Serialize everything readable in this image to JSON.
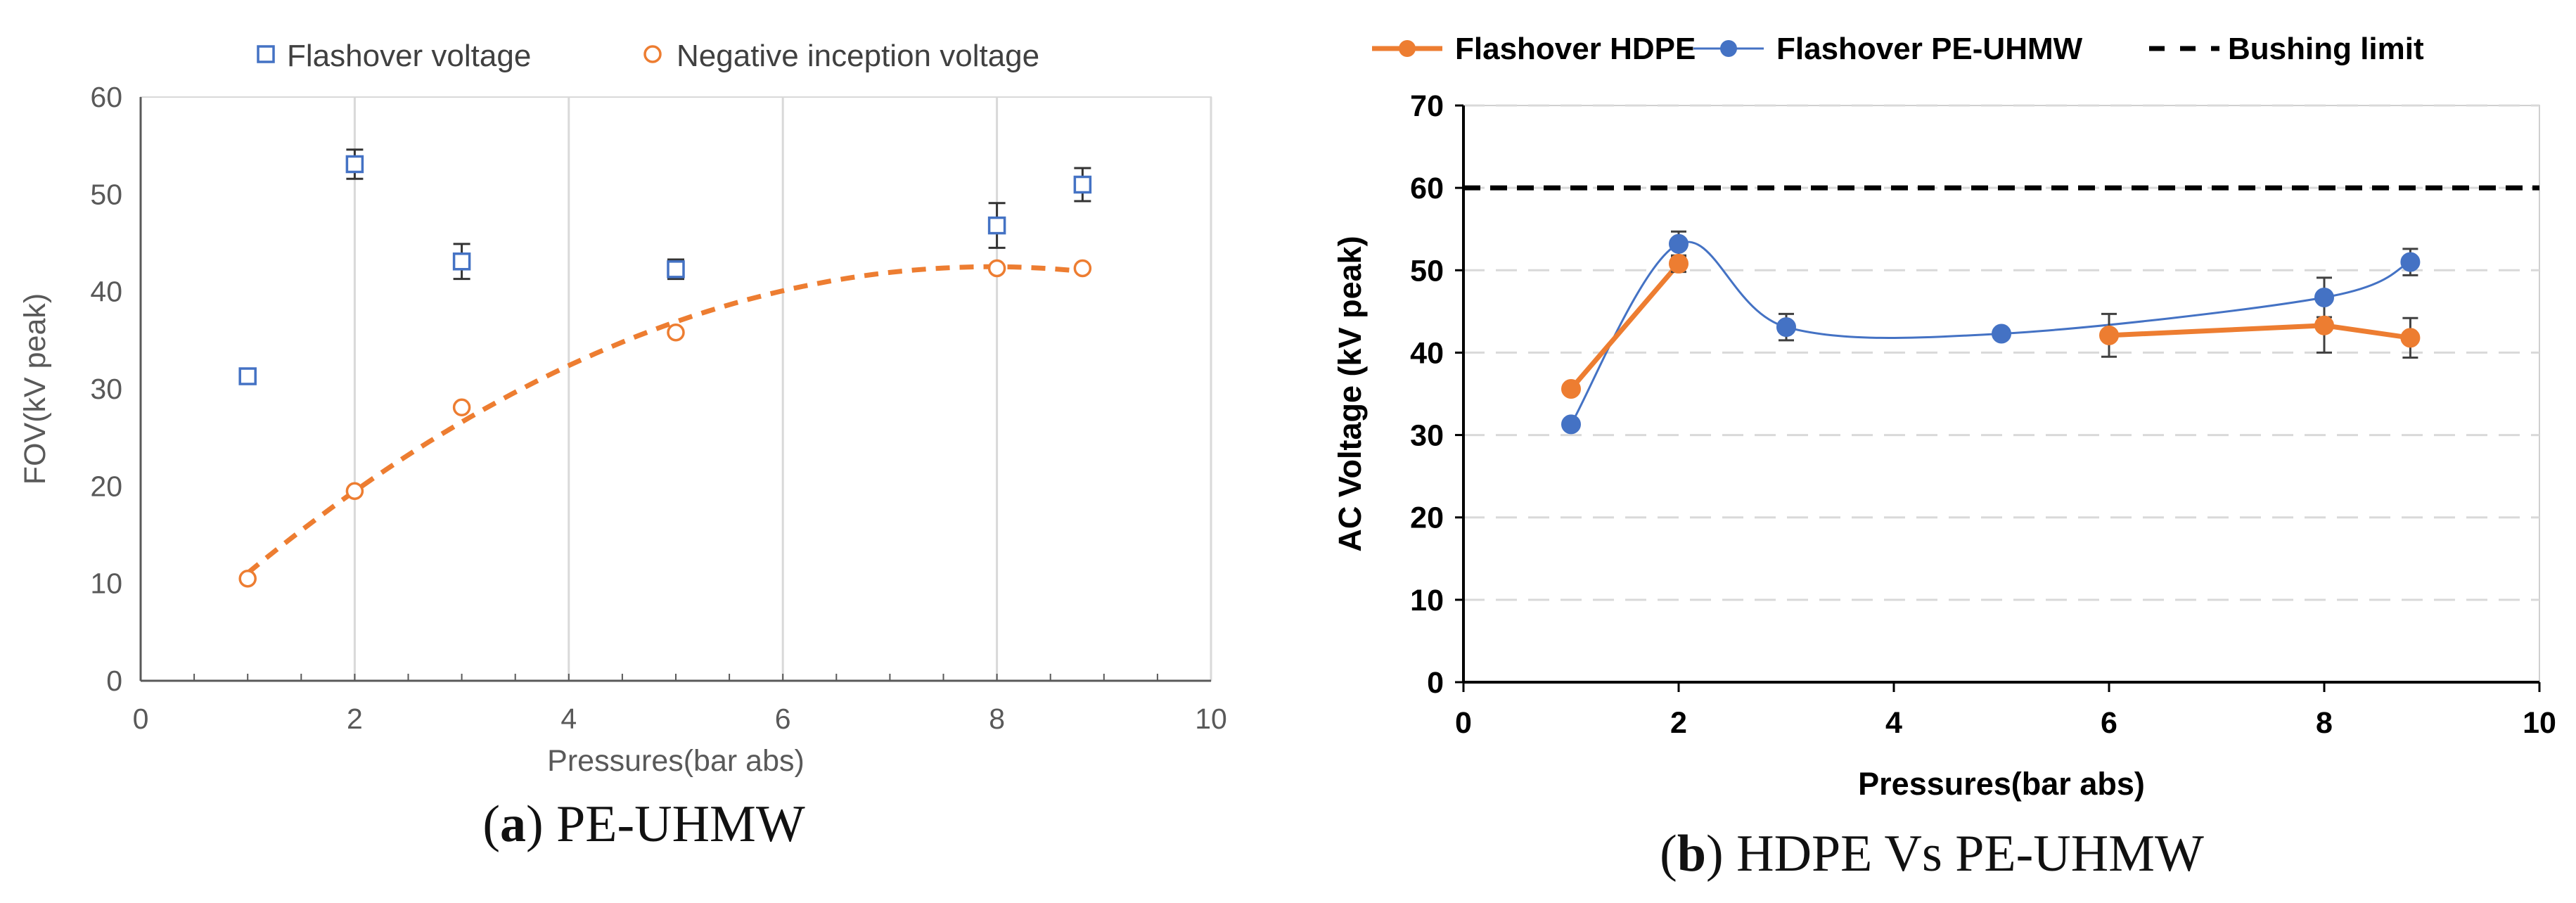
{
  "captions": {
    "a": {
      "letter": "a",
      "text": "PE-UHMW"
    },
    "b": {
      "letter": "b",
      "text": "HDPE Vs PE-UHMW"
    }
  },
  "colors": {
    "blue": "#4472c4",
    "orange": "#ed7d31",
    "grid": "#d9d9d9",
    "axis": "#595959"
  },
  "chart_data": [
    {
      "type": "scatter",
      "panel": "a",
      "xlabel": "Pressures(bar abs)",
      "ylabel": "FOV(kV peak)",
      "xlim": [
        0,
        10
      ],
      "ylim": [
        0,
        60
      ],
      "xticks": [
        0,
        2,
        4,
        6,
        8,
        10
      ],
      "yticks": [
        0,
        10,
        20,
        30,
        40,
        50,
        60
      ],
      "grid": "vertical",
      "legend_position": "top",
      "series": [
        {
          "name": "Flashover voltage",
          "marker": "square",
          "x": [
            1,
            2,
            3,
            5,
            8,
            8.8
          ],
          "y": [
            31.3,
            53.1,
            43.1,
            42.3,
            46.8,
            51.0
          ],
          "err": [
            0.6,
            1.5,
            1.8,
            1.0,
            2.3,
            1.7
          ]
        },
        {
          "name": "Negative inception voltage",
          "marker": "circle",
          "x": [
            1,
            2,
            3,
            5,
            8,
            8.8
          ],
          "y": [
            10.5,
            19.5,
            28.1,
            35.8,
            42.4,
            42.4
          ],
          "trendline": "polynomial"
        }
      ]
    },
    {
      "type": "line",
      "panel": "b",
      "xlabel": "Pressures(bar abs)",
      "ylabel": "AC Voltage (kV peak)",
      "xlim": [
        0,
        10
      ],
      "ylim": [
        0,
        70
      ],
      "xticks": [
        0,
        2,
        4,
        6,
        8,
        10
      ],
      "yticks": [
        0,
        10,
        20,
        30,
        40,
        50,
        60,
        70
      ],
      "grid": "horizontal-dashed",
      "legend_position": "top",
      "series": [
        {
          "name": "Flashover HDPE",
          "x": [
            1,
            2,
            6,
            8,
            8.8
          ],
          "y": [
            35.6,
            50.8,
            42.1,
            43.3,
            41.8
          ],
          "err": [
            0.5,
            1.0,
            2.6,
            3.3,
            2.4
          ],
          "segments": [
            [
              0,
              1
            ],
            [
              2,
              4
            ]
          ]
        },
        {
          "name": "Flashover PE-UHMW",
          "x": [
            1,
            2,
            3,
            5,
            8,
            8.8
          ],
          "y": [
            31.3,
            53.2,
            43.1,
            42.3,
            46.7,
            51.0
          ],
          "err": [
            0.5,
            1.5,
            1.6,
            0.6,
            2.4,
            1.6
          ],
          "smooth": true
        },
        {
          "name": "Bushing limit",
          "type": "hline",
          "y": 60
        }
      ]
    }
  ]
}
